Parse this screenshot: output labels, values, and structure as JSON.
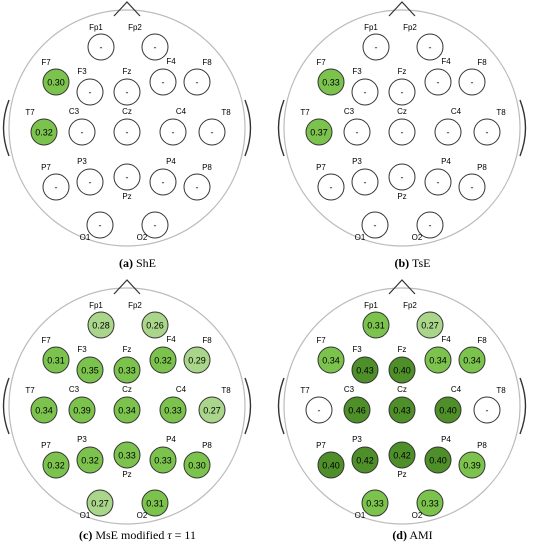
{
  "colors": {
    "none": "#ffffff",
    "light": "#a9d68a",
    "medium": "#7cc34e",
    "dark": "#4e8f2a",
    "outline": "#333333",
    "head": "#bbbbbb"
  },
  "electrodes": [
    "Fp1",
    "Fp2",
    "F7",
    "F3",
    "Fz",
    "F4",
    "F8",
    "T7",
    "C3",
    "Cz",
    "C4",
    "T8",
    "P7",
    "P3",
    "Pz",
    "P4",
    "P8",
    "O1",
    "O2"
  ],
  "panels": [
    {
      "tag": "(a)",
      "name": "ShE",
      "values": {
        "Fp1": "-",
        "Fp2": "-",
        "F7": "0.30",
        "F3": "-",
        "Fz": "-",
        "F4": "-",
        "F8": "-",
        "T7": "0.32",
        "C3": "-",
        "Cz": "-",
        "C4": "-",
        "T8": "-",
        "P7": "-",
        "P3": "-",
        "Pz": "-",
        "P4": "-",
        "P8": "-",
        "O1": "-",
        "O2": "-"
      },
      "shade": {
        "F7": "medium",
        "T7": "medium"
      }
    },
    {
      "tag": "(b)",
      "name": "TsE",
      "values": {
        "Fp1": "-",
        "Fp2": "-",
        "F7": "0.33",
        "F3": "-",
        "Fz": "-",
        "F4": "-",
        "F8": "-",
        "T7": "0.37",
        "C3": "-",
        "Cz": "-",
        "C4": "-",
        "T8": "-",
        "P7": "-",
        "P3": "-",
        "Pz": "-",
        "P4": "-",
        "P8": "-",
        "O1": "-",
        "O2": "-"
      },
      "shade": {
        "F7": "medium",
        "T7": "medium"
      }
    },
    {
      "tag": "(c)",
      "name": "MsE modified",
      "tau": "τ",
      "tau_value": "= 11",
      "values": {
        "Fp1": "0.28",
        "Fp2": "0.26",
        "F7": "0.31",
        "F3": "0.35",
        "Fz": "0.33",
        "F4": "0.32",
        "F8": "0.29",
        "T7": "0.34",
        "C3": "0.39",
        "Cz": "0.34",
        "C4": "0.33",
        "T8": "0.27",
        "P7": "0.32",
        "P3": "0.32",
        "Pz": "0.33",
        "P4": "0.33",
        "P8": "0.30",
        "O1": "0.27",
        "O2": "0.31"
      },
      "shade": {
        "Fp1": "light",
        "Fp2": "light",
        "F7": "medium",
        "F3": "medium",
        "Fz": "medium",
        "F4": "medium",
        "F8": "light",
        "T7": "medium",
        "C3": "medium",
        "Cz": "medium",
        "C4": "medium",
        "T8": "light",
        "P7": "medium",
        "P3": "medium",
        "Pz": "medium",
        "P4": "medium",
        "P8": "medium",
        "O1": "light",
        "O2": "medium"
      }
    },
    {
      "tag": "(d)",
      "name": "AMI",
      "values": {
        "Fp1": "0.31",
        "Fp2": "0.27",
        "F7": "0.34",
        "F3": "0.43",
        "Fz": "0.40",
        "F4": "0.34",
        "F8": "0.34",
        "T7": "-",
        "C3": "0.46",
        "Cz": "0.43",
        "C4": "0.40",
        "T8": "-",
        "P7": "0.40",
        "P3": "0.42",
        "Pz": "0.42",
        "P4": "0.40",
        "P8": "0.39",
        "O1": "0.33",
        "O2": "0.33"
      },
      "shade": {
        "Fp1": "medium",
        "Fp2": "light",
        "F7": "medium",
        "F3": "dark",
        "Fz": "dark",
        "F4": "medium",
        "F8": "medium",
        "T7": "none",
        "C3": "dark",
        "Cz": "dark",
        "C4": "dark",
        "T8": "none",
        "P7": "dark",
        "P3": "dark",
        "Pz": "dark",
        "P4": "dark",
        "P8": "medium",
        "O1": "medium",
        "O2": "medium"
      }
    }
  ]
}
